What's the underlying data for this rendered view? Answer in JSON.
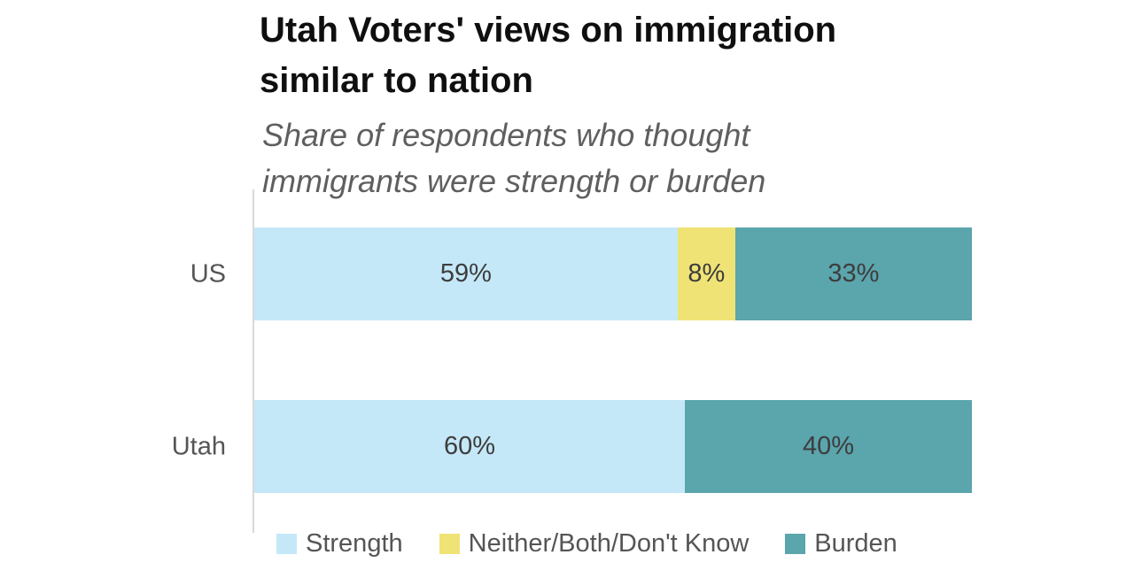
{
  "chart_data": {
    "type": "bar",
    "orientation": "horizontal",
    "stacked": true,
    "title": "Utah Voters' views on immigration similar to nation",
    "subtitle": "Share of respondents who thought immigrants were strength or burden",
    "categories": [
      "US",
      "Utah"
    ],
    "series": [
      {
        "name": "Strength",
        "color": "#c5e8f8",
        "values": [
          59,
          60
        ]
      },
      {
        "name": "Neither/Both/Don't Know",
        "color": "#f0e376",
        "values": [
          8,
          0
        ]
      },
      {
        "name": "Burden",
        "color": "#5ba5ad",
        "values": [
          33,
          40
        ]
      }
    ],
    "value_label_format": "percent",
    "xlim": [
      0,
      100
    ],
    "grid": false,
    "legend_position": "bottom",
    "colors": {
      "title_text": "#0f0f0f",
      "subtitle_text": "#5f5f5f",
      "category_label_text": "#555555",
      "value_label_text": "#3d3d3d",
      "legend_label_text": "#555555",
      "axis_line": "#d9d9d9",
      "background": "#ffffff"
    }
  }
}
